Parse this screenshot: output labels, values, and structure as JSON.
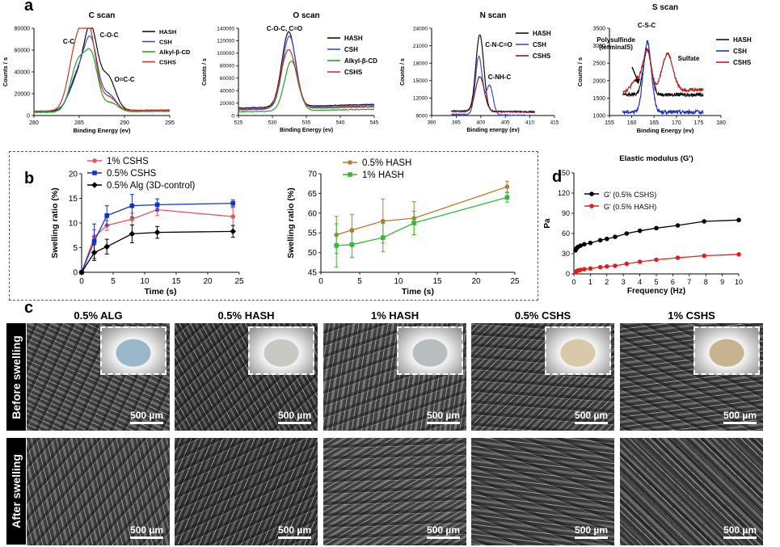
{
  "panels": {
    "a": "a",
    "b": "b",
    "c": "c",
    "d": "d"
  },
  "chart_data": [
    {
      "type": "line",
      "id": "c-scan",
      "title": "C scan",
      "xlabel": "Binding Energy (ev)",
      "ylabel": "Counts / s",
      "xlim": [
        280,
        295
      ],
      "ylim": [
        0,
        80000
      ],
      "xticks": [
        280,
        285,
        290,
        295
      ],
      "yticks": [
        0,
        20000,
        40000,
        60000,
        80000
      ],
      "reverse_x": false,
      "annotations": [
        "C-C",
        "C-O-C",
        "O=C-C"
      ],
      "series": [
        {
          "name": "HASH",
          "color": "#111111",
          "peaks": [
            [
              284.8,
              28000,
              0.9
            ],
            [
              286.3,
              70000,
              0.75
            ],
            [
              288.2,
              30000,
              0.8
            ]
          ],
          "baseline": [
            4000,
            5000
          ]
        },
        {
          "name": "CSH",
          "color": "#3b4fc4",
          "peaks": [
            [
              284.8,
              32000,
              0.9
            ],
            [
              286.3,
              60000,
              0.75
            ],
            [
              288.3,
              15000,
              0.8
            ]
          ],
          "baseline": [
            3000,
            4000
          ]
        },
        {
          "name": "Alkyl-β-CD",
          "color": "#2ca02c",
          "peaks": [
            [
              284.9,
              45000,
              0.85
            ],
            [
              286.4,
              45000,
              0.7
            ],
            [
              288.5,
              8000,
              0.8
            ]
          ],
          "baseline": [
            3000,
            4000
          ]
        },
        {
          "name": "CSHS",
          "color": "#c0392b",
          "peaks": [
            [
              284.8,
              62000,
              0.9
            ],
            [
              286.2,
              58000,
              0.75
            ],
            [
              288.3,
              12000,
              0.8
            ]
          ],
          "baseline": [
            4000,
            5000
          ]
        }
      ]
    },
    {
      "type": "line",
      "id": "o-scan",
      "title": "O scan",
      "xlabel": "Binding Energy (ev)",
      "ylabel": "Counts / s",
      "xlim": [
        525,
        545
      ],
      "ylim": [
        0,
        140000
      ],
      "xticks": [
        525,
        530,
        535,
        540,
        545
      ],
      "yticks": [
        0,
        20000,
        40000,
        60000,
        80000,
        100000,
        120000,
        140000
      ],
      "reverse_x": false,
      "annotations": [
        "C-O-C, C=O"
      ],
      "series": [
        {
          "name": "HASH",
          "color": "#111111",
          "peaks": [
            [
              532.4,
              120000,
              1.0
            ]
          ],
          "baseline": [
            12000,
            18000
          ]
        },
        {
          "name": "CSH",
          "color": "#3b4fc4",
          "peaks": [
            [
              532.5,
              115000,
              1.0
            ]
          ],
          "baseline": [
            10000,
            16000
          ]
        },
        {
          "name": "Alkyl-β-CD",
          "color": "#2ca02c",
          "peaks": [
            [
              532.8,
              80000,
              1.0
            ]
          ],
          "baseline": [
            6000,
            10000
          ]
        },
        {
          "name": "CSHS",
          "color": "#c0392b",
          "peaks": [
            [
              532.4,
              95000,
              1.1
            ]
          ],
          "baseline": [
            9000,
            14000
          ]
        }
      ]
    },
    {
      "type": "line",
      "id": "n-scan",
      "title": "N scan",
      "xlabel": "Binding energy (ev)",
      "ylabel": "Counts / s",
      "xlim": [
        390,
        415
      ],
      "ylim": [
        9000,
        24000
      ],
      "xticks": [
        390,
        395,
        400,
        405,
        410,
        415
      ],
      "yticks": [
        9000,
        12000,
        15000,
        18000,
        21000,
        24000
      ],
      "reverse_x": false,
      "annotations": [
        "C-N-C=O",
        "C-NH-C"
      ],
      "series": [
        {
          "name": "HASH",
          "color": "#111111",
          "peaks": [
            [
              399.8,
              13200,
              0.8
            ]
          ],
          "baseline": [
            9800,
            9600
          ],
          "xrange": [
            394,
            411
          ]
        },
        {
          "name": "CSH",
          "color": "#3b4fc4",
          "peaks": [
            [
              399.6,
              10000,
              0.7
            ],
            [
              401.8,
              5000,
              0.7
            ]
          ],
          "baseline": [
            9200,
            9000
          ],
          "xrange": [
            394,
            411
          ]
        },
        {
          "name": "CSHS",
          "color": "#8b1a2b",
          "peaks": [
            [
              399.8,
              6000,
              0.9
            ]
          ],
          "baseline": [
            9700,
            9700
          ],
          "xrange": [
            394,
            411
          ]
        }
      ]
    },
    {
      "type": "line",
      "id": "s-scan",
      "title": "S scan",
      "xlabel": "Binding Energy (ev)",
      "ylabel": "Counts / s",
      "xlim": [
        155,
        180
      ],
      "ylim": [
        1000,
        3500
      ],
      "xticks": [
        155,
        160,
        165,
        170,
        175,
        180
      ],
      "yticks": [
        1000,
        1500,
        2000,
        2500,
        3000,
        3500
      ],
      "reverse_x": false,
      "annotations": [
        "C-S-C",
        "Polysulfinde (terminalS)",
        "Sulfate"
      ],
      "series": [
        {
          "name": "HASH",
          "color": "#111111",
          "peaks": [
            [
              163.5,
              1300,
              0.9
            ]
          ],
          "baseline": [
            1600,
            1600
          ],
          "xrange": [
            158,
            176
          ]
        },
        {
          "name": "CSH",
          "color": "#2233bb",
          "peaks": [
            [
              163.5,
              2000,
              0.9
            ]
          ],
          "baseline": [
            1100,
            1100
          ],
          "xrange": [
            158,
            176
          ]
        },
        {
          "name": "CSHS",
          "color": "#b22222",
          "peaks": [
            [
              161.0,
              300,
              1.0
            ],
            [
              163.4,
              1150,
              0.9
            ],
            [
              168.0,
              1050,
              1.2
            ]
          ],
          "baseline": [
            1700,
            1750
          ],
          "xrange": [
            158,
            176
          ]
        }
      ]
    },
    {
      "type": "line",
      "id": "swelling-left",
      "xlabel": "Time (s)",
      "ylabel": "Swelling ratio (%)",
      "xlim": [
        0,
        25
      ],
      "ylim": [
        0,
        20
      ],
      "xticks": [
        0,
        5,
        10,
        15,
        20,
        25
      ],
      "yticks": [
        0,
        5,
        10,
        15,
        20
      ],
      "series": [
        {
          "name": "1% CSHS",
          "color": "#e8555f",
          "marker": "circle",
          "x": [
            0,
            2,
            4,
            8,
            12,
            24
          ],
          "y": [
            0,
            7.2,
            9.5,
            10.8,
            12.7,
            11.3
          ],
          "err": [
            0,
            1.4,
            1.0,
            1.2,
            1.2,
            1.8
          ]
        },
        {
          "name": "0.5% CSHS",
          "color": "#1133cc",
          "marker": "square",
          "x": [
            0,
            2,
            4,
            8,
            12,
            24
          ],
          "y": [
            0,
            6.3,
            11.5,
            13.5,
            13.7,
            14.0
          ],
          "err": [
            0,
            3.5,
            2.0,
            2.3,
            1.2,
            0.7
          ]
        },
        {
          "name": "0.5% Alg (3D-control)",
          "color": "#000000",
          "marker": "diamond",
          "x": [
            0,
            2,
            4,
            8,
            12,
            24
          ],
          "y": [
            0,
            4.0,
            5.2,
            7.8,
            8.1,
            8.3
          ],
          "err": [
            0,
            1.6,
            1.5,
            1.8,
            1.2,
            1.2
          ]
        }
      ]
    },
    {
      "type": "line",
      "id": "swelling-right",
      "xlabel": "Time (s)",
      "ylabel": "Swelling ratio (%)",
      "xlim": [
        0,
        25
      ],
      "ylim": [
        45,
        70
      ],
      "xticks": [
        0,
        5,
        10,
        15,
        20,
        25
      ],
      "yticks": [
        45,
        50,
        55,
        60,
        65,
        70
      ],
      "series": [
        {
          "name": "0.5% HASH",
          "color": "#b87a2a",
          "marker": "circle",
          "x": [
            2,
            4,
            8,
            12,
            24
          ],
          "y": [
            54.5,
            55.7,
            58.0,
            58.7,
            66.7
          ],
          "err": [
            4.7,
            4.0,
            5.6,
            4.2,
            1.4
          ]
        },
        {
          "name": "1% HASH",
          "color": "#33bb33",
          "marker": "square",
          "x": [
            2,
            4,
            8,
            12,
            24
          ],
          "y": [
            51.8,
            52.0,
            53.8,
            57.5,
            64.0
          ],
          "err": [
            5.5,
            3.2,
            3.6,
            3.0,
            1.2
          ]
        }
      ]
    },
    {
      "type": "line",
      "id": "elastic-modulus",
      "title": "Elastic modulus (G')",
      "xlabel": "Frequency (Hz)",
      "ylabel": "Pa",
      "xlim": [
        0,
        10
      ],
      "ylim": [
        0,
        150
      ],
      "xticks": [
        0,
        1,
        2,
        3,
        4,
        5,
        6,
        7,
        8,
        9,
        10
      ],
      "yticks": [
        0,
        30,
        60,
        90,
        120,
        150
      ],
      "series": [
        {
          "name": "G' (0.5% CSHS)",
          "color": "#000000",
          "marker": "circle",
          "x": [
            0.1,
            0.16,
            0.25,
            0.4,
            0.63,
            1.0,
            1.6,
            2.0,
            2.5,
            3.2,
            4.0,
            5.0,
            6.3,
            7.9,
            10.0
          ],
          "y": [
            35,
            38,
            40,
            42,
            44,
            46,
            50,
            52,
            55,
            60,
            64,
            68,
            72,
            78,
            80
          ]
        },
        {
          "name": "G' (0.5% HASH)",
          "color": "#e02020",
          "marker": "circle",
          "x": [
            0.1,
            0.16,
            0.25,
            0.4,
            0.63,
            1.0,
            1.6,
            2.0,
            2.5,
            3.2,
            4.0,
            5.0,
            6.3,
            7.9,
            10.0
          ],
          "y": [
            3,
            4,
            5,
            6,
            7,
            8,
            10,
            11,
            12,
            15,
            18,
            21,
            24,
            27,
            29
          ]
        }
      ]
    }
  ],
  "sem": {
    "columns": [
      "0.5% ALG",
      "0.5% HASH",
      "1% HASH",
      "0.5% CSHS",
      "1% CSHS"
    ],
    "rows": [
      "Before swelling",
      "After swelling"
    ],
    "scale_bar": "500 µm"
  }
}
